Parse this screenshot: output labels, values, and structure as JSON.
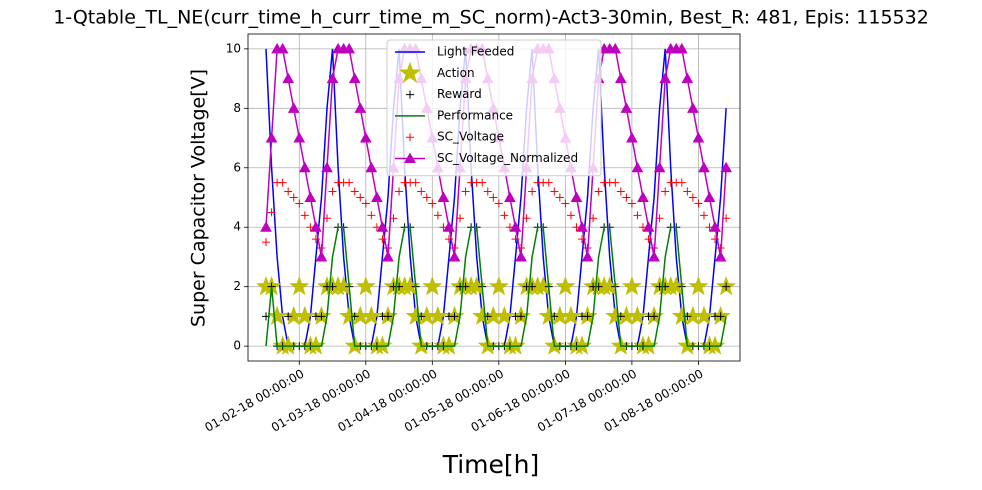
{
  "chart_data": {
    "type": "line",
    "title": "1-Qtable_TL_NE(curr_time_h_curr_time_m_SC_norm)-Act3-30min, Best_R: 481, Epis: 115532",
    "x_label": "Time[h]",
    "y_label": "Super Capacitor Voltage[V]",
    "x": [
      "2018-01-01 12:00:00",
      "2018-01-01 14:00:00",
      "2018-01-01 16:00:00",
      "2018-01-01 18:00:00",
      "2018-01-01 20:00:00",
      "2018-01-01 22:00:00",
      "2018-01-02 00:00:00",
      "2018-01-02 02:00:00",
      "2018-01-02 04:00:00",
      "2018-01-02 06:00:00",
      "2018-01-02 08:00:00",
      "2018-01-02 10:00:00",
      "2018-01-02 12:00:00",
      "2018-01-02 14:00:00",
      "2018-01-02 16:00:00",
      "2018-01-02 18:00:00",
      "2018-01-02 20:00:00",
      "2018-01-02 22:00:00",
      "2018-01-03 00:00:00",
      "2018-01-03 02:00:00",
      "2018-01-03 04:00:00",
      "2018-01-03 06:00:00",
      "2018-01-03 08:00:00",
      "2018-01-03 10:00:00",
      "2018-01-03 12:00:00",
      "2018-01-03 14:00:00",
      "2018-01-03 16:00:00",
      "2018-01-03 18:00:00",
      "2018-01-03 20:00:00",
      "2018-01-03 22:00:00",
      "2018-01-04 00:00:00",
      "2018-01-04 02:00:00",
      "2018-01-04 04:00:00",
      "2018-01-04 06:00:00",
      "2018-01-04 08:00:00",
      "2018-01-04 10:00:00",
      "2018-01-04 12:00:00",
      "2018-01-04 14:00:00",
      "2018-01-04 16:00:00",
      "2018-01-04 18:00:00",
      "2018-01-04 20:00:00",
      "2018-01-04 22:00:00",
      "2018-01-05 00:00:00",
      "2018-01-05 02:00:00",
      "2018-01-05 04:00:00",
      "2018-01-05 06:00:00",
      "2018-01-05 08:00:00",
      "2018-01-05 10:00:00",
      "2018-01-05 12:00:00",
      "2018-01-05 14:00:00",
      "2018-01-05 16:00:00",
      "2018-01-05 18:00:00",
      "2018-01-05 20:00:00",
      "2018-01-05 22:00:00",
      "2018-01-06 00:00:00",
      "2018-01-06 02:00:00",
      "2018-01-06 04:00:00",
      "2018-01-06 06:00:00",
      "2018-01-06 08:00:00",
      "2018-01-06 10:00:00",
      "2018-01-06 12:00:00",
      "2018-01-06 14:00:00",
      "2018-01-06 16:00:00",
      "2018-01-06 18:00:00",
      "2018-01-06 20:00:00",
      "2018-01-06 22:00:00",
      "2018-01-07 00:00:00",
      "2018-01-07 02:00:00",
      "2018-01-07 04:00:00",
      "2018-01-07 06:00:00",
      "2018-01-07 08:00:00",
      "2018-01-07 10:00:00",
      "2018-01-07 12:00:00",
      "2018-01-07 14:00:00",
      "2018-01-07 16:00:00",
      "2018-01-07 18:00:00",
      "2018-01-07 20:00:00",
      "2018-01-07 22:00:00",
      "2018-01-08 00:00:00",
      "2018-01-08 02:00:00",
      "2018-01-08 04:00:00",
      "2018-01-08 06:00:00",
      "2018-01-08 08:00:00",
      "2018-01-08 10:00:00"
    ],
    "series": [
      {
        "name": "Light Feeded",
        "color": "#0000ff",
        "linestyle": "solid",
        "marker": null,
        "values": [
          10,
          6,
          3,
          1,
          0,
          0,
          0,
          0,
          1,
          3,
          5,
          8,
          10,
          6,
          3,
          1,
          0,
          0,
          0,
          0,
          1,
          3,
          5,
          8,
          10,
          6,
          3,
          1,
          0,
          0,
          0,
          0,
          1,
          3,
          5,
          8,
          10,
          6,
          3,
          1,
          0,
          0,
          0,
          0,
          1,
          3,
          5,
          8,
          10,
          6,
          3,
          1,
          0,
          0,
          0,
          0,
          1,
          3,
          5,
          8,
          10,
          6,
          3,
          1,
          0,
          0,
          0,
          0,
          1,
          3,
          5,
          8,
          10,
          6,
          3,
          1,
          0,
          0,
          0,
          0,
          1,
          3,
          5,
          8
        ]
      },
      {
        "name": "Action",
        "color": "#bfbf00",
        "linestyle": null,
        "marker": "star",
        "values": [
          2,
          2,
          1,
          0,
          0,
          1,
          2,
          1,
          0,
          0,
          1,
          2,
          2,
          2,
          2,
          1,
          0,
          1,
          2,
          1,
          0,
          0,
          1,
          2,
          2,
          2,
          2,
          1,
          0,
          1,
          2,
          1,
          0,
          0,
          1,
          2,
          2,
          2,
          2,
          1,
          0,
          1,
          2,
          1,
          0,
          0,
          1,
          2,
          2,
          2,
          2,
          1,
          0,
          1,
          2,
          1,
          0,
          0,
          1,
          2,
          2,
          2,
          2,
          1,
          0,
          1,
          2,
          1,
          0,
          0,
          1,
          2,
          2,
          2,
          2,
          1,
          0,
          1,
          2,
          1,
          0,
          0,
          1,
          2
        ]
      },
      {
        "name": "Reward",
        "color": "#000000",
        "linestyle": null,
        "marker": "plus",
        "values": [
          1,
          2,
          0,
          0,
          1,
          0,
          0,
          0,
          0,
          1,
          1,
          2,
          2,
          4,
          4,
          2,
          1,
          0,
          0,
          0,
          0,
          1,
          1,
          2,
          2,
          4,
          4,
          2,
          1,
          0,
          0,
          0,
          0,
          1,
          1,
          2,
          2,
          4,
          4,
          2,
          1,
          0,
          0,
          0,
          0,
          1,
          1,
          2,
          2,
          4,
          4,
          2,
          1,
          0,
          0,
          0,
          0,
          1,
          1,
          2,
          2,
          4,
          4,
          2,
          1,
          0,
          0,
          0,
          0,
          1,
          1,
          2,
          2,
          4,
          4,
          2,
          1,
          0,
          0,
          0,
          0,
          1,
          1,
          2
        ]
      },
      {
        "name": "Performance",
        "color": "#008000",
        "linestyle": "solid",
        "marker": null,
        "values": [
          0,
          2,
          0,
          0,
          0,
          0,
          0,
          0,
          0,
          0,
          0,
          1,
          3,
          4,
          4,
          2,
          0,
          0,
          0,
          0,
          0,
          0,
          0,
          1,
          3,
          4,
          4,
          2,
          0,
          0,
          0,
          0,
          0,
          0,
          0,
          1,
          3,
          4,
          4,
          2,
          0,
          0,
          0,
          0,
          0,
          0,
          0,
          1,
          3,
          4,
          4,
          2,
          0,
          0,
          0,
          0,
          0,
          0,
          0,
          1,
          3,
          4,
          4,
          2,
          0,
          0,
          0,
          0,
          0,
          0,
          0,
          1,
          3,
          4,
          4,
          2,
          0,
          0,
          0,
          0,
          0,
          0,
          0,
          1
        ]
      },
      {
        "name": "SC_Voltage",
        "color": "#ff0000",
        "linestyle": null,
        "marker": "plus",
        "values": [
          3.5,
          4.5,
          5.5,
          5.5,
          5.2,
          5.0,
          4.8,
          4.4,
          4.0,
          3.6,
          3.3,
          4.3,
          5.2,
          5.5,
          5.5,
          5.5,
          5.2,
          5.0,
          4.8,
          4.4,
          4.0,
          3.6,
          3.3,
          4.3,
          5.2,
          5.5,
          5.5,
          5.5,
          5.2,
          5.0,
          4.8,
          4.4,
          4.0,
          3.6,
          3.3,
          4.3,
          5.2,
          5.5,
          5.5,
          5.5,
          5.2,
          5.0,
          4.8,
          4.4,
          4.0,
          3.6,
          3.3,
          4.3,
          5.2,
          5.5,
          5.5,
          5.5,
          5.2,
          5.0,
          4.8,
          4.4,
          4.0,
          3.6,
          3.3,
          4.3,
          5.2,
          5.5,
          5.5,
          5.5,
          5.2,
          5.0,
          4.8,
          4.4,
          4.0,
          3.6,
          3.3,
          4.3,
          5.2,
          5.5,
          5.5,
          5.5,
          5.2,
          5.0,
          4.8,
          4.4,
          4.0,
          3.6,
          3.3,
          4.3
        ]
      },
      {
        "name": "SC_Voltage_Normalized",
        "color": "#bf00bf",
        "linestyle": "solid",
        "marker": "triangle",
        "values": [
          4,
          7,
          10,
          10,
          9,
          8,
          7,
          6,
          5,
          4,
          3,
          6,
          9,
          10,
          10,
          10,
          9,
          8,
          7,
          6,
          5,
          4,
          3,
          6,
          9,
          10,
          10,
          10,
          9,
          8,
          7,
          6,
          5,
          4,
          3,
          6,
          9,
          10,
          10,
          10,
          9,
          8,
          7,
          6,
          5,
          4,
          3,
          6,
          9,
          10,
          10,
          10,
          9,
          8,
          7,
          6,
          5,
          4,
          3,
          6,
          9,
          10,
          10,
          10,
          9,
          8,
          7,
          6,
          5,
          4,
          3,
          6,
          9,
          10,
          10,
          10,
          9,
          8,
          7,
          6,
          5,
          4,
          3,
          6
        ]
      }
    ],
    "xlim": [
      "2018-01-01 05:30:00",
      "2018-01-08 15:00:00"
    ],
    "xticks": [
      {
        "value": "2018-01-02 00:00:00",
        "label": "01-02-18 00:00:00"
      },
      {
        "value": "2018-01-03 00:00:00",
        "label": "01-03-18 00:00:00"
      },
      {
        "value": "2018-01-04 00:00:00",
        "label": "01-04-18 00:00:00"
      },
      {
        "value": "2018-01-05 00:00:00",
        "label": "01-05-18 00:00:00"
      },
      {
        "value": "2018-01-06 00:00:00",
        "label": "01-06-18 00:00:00"
      },
      {
        "value": "2018-01-07 00:00:00",
        "label": "01-07-18 00:00:00"
      },
      {
        "value": "2018-01-08 00:00:00",
        "label": "01-08-18 00:00:00"
      }
    ],
    "ylim": [
      -0.5,
      10.5
    ],
    "yticks": [
      0,
      2,
      4,
      6,
      8,
      10
    ],
    "grid": true,
    "legend": "upper center"
  }
}
